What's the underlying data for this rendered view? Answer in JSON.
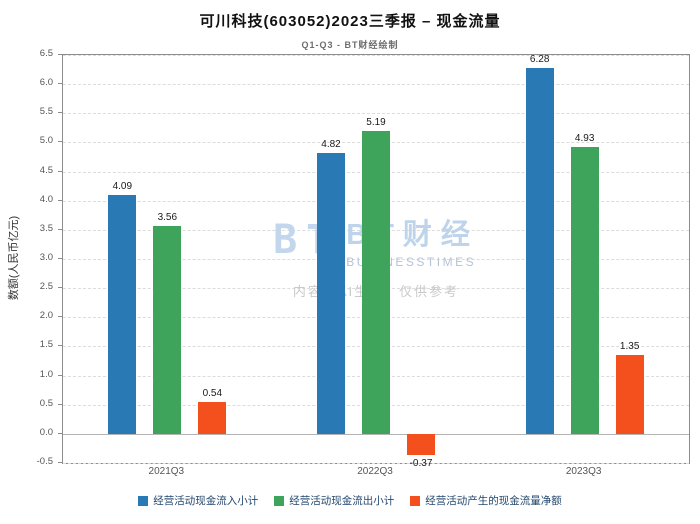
{
  "title": "可川科技(603052)2023三季报 – 现金流量",
  "subtitle": "Q1-Q3 - BT财经绘制",
  "watermark": {
    "brand": "BT财经",
    "brand_sub": "BUSINESSTIMES",
    "disclaimer": "内容由AI生成，仅供参考"
  },
  "chart_data": {
    "type": "bar",
    "categories": [
      "2021Q3",
      "2022Q3",
      "2023Q3"
    ],
    "series": [
      {
        "name": "经营活动现金流入小计",
        "color": "#2979b5",
        "values": [
          4.09,
          4.82,
          6.28
        ]
      },
      {
        "name": "经营活动现金流出小计",
        "color": "#3fa45b",
        "values": [
          3.56,
          5.19,
          4.93
        ]
      },
      {
        "name": "经营活动产生的现金流量净额",
        "color": "#f4501e",
        "values": [
          0.54,
          -0.37,
          1.35
        ]
      }
    ],
    "xlabel": "",
    "ylabel": "数额(人民币亿元)",
    "ylim": [
      -0.5,
      6.5
    ],
    "ytick_step": 0.5,
    "grid": true,
    "legend_position": "bottom"
  }
}
